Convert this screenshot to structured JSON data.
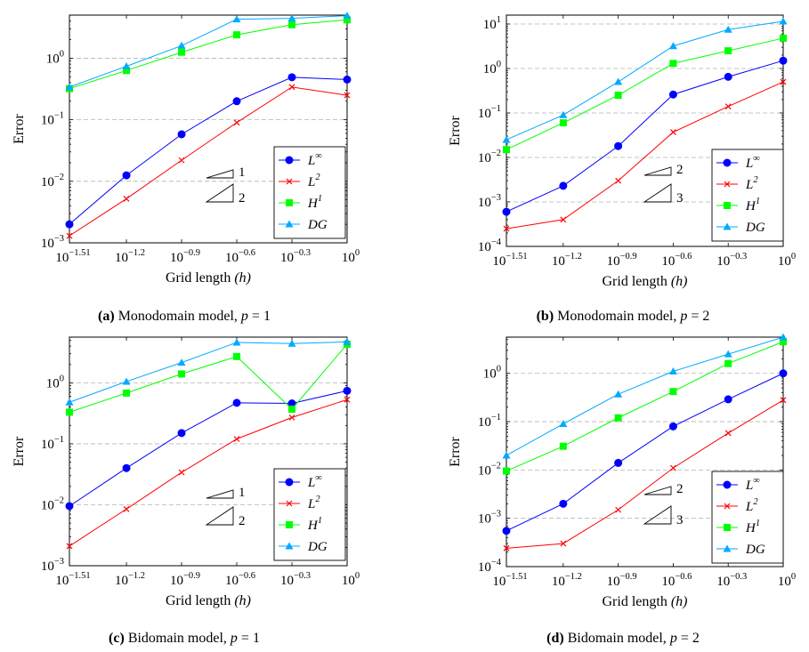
{
  "figure": {
    "ticks": {
      "x_exponents": [
        "−1.51",
        "−1.2",
        "−0.9",
        "−0.6",
        "−0.3",
        "0"
      ],
      "y_base": "10"
    },
    "legend": [
      {
        "key": "Linf",
        "base": "L",
        "sup": "∞",
        "color": "#0000ff",
        "marker": "circle"
      },
      {
        "key": "L2",
        "base": "L",
        "sup": "2",
        "color": "#ff0000",
        "marker": "cross"
      },
      {
        "key": "H1",
        "base": "H",
        "sup": "1",
        "color": "#00ff00",
        "marker": "square"
      },
      {
        "key": "DG",
        "base": "DG",
        "sup": "",
        "color": "#00aaff",
        "marker": "triangle"
      }
    ]
  },
  "chart_data": [
    {
      "type": "line",
      "id": "a",
      "caption_tag": "(a)",
      "caption_text": " Monodomain model, ",
      "caption_var": "p",
      "caption_eq": " = 1",
      "xlabel": "Grid length",
      "xlabel_var": "(h)",
      "ylabel": "Error",
      "xscale": "log10",
      "yscale": "log10",
      "xlim_log10": [
        -1.51,
        0
      ],
      "ylim_log10": [
        -3,
        0.7
      ],
      "y_tick_exponents": [
        "−3",
        "−2",
        "−1",
        "0"
      ],
      "y_tick_values_log10": [
        -3,
        -2,
        -1,
        0
      ],
      "grid": "horizontal dashed",
      "legend_position": "bottom-right",
      "x_log10": [
        -1.51,
        -1.2,
        -0.9,
        -0.6,
        -0.3,
        0
      ],
      "series": [
        {
          "name": "L∞",
          "values": [
            0.002,
            0.0125,
            0.058,
            0.2,
            0.49,
            0.45
          ]
        },
        {
          "name": "L2",
          "values": [
            0.0013,
            0.0052,
            0.022,
            0.09,
            0.34,
            0.25
          ]
        },
        {
          "name": "H1",
          "values": [
            0.32,
            0.63,
            1.25,
            2.4,
            3.5,
            4.2
          ]
        },
        {
          "name": "DG",
          "values": [
            0.34,
            0.74,
            1.6,
            4.3,
            4.45,
            4.9
          ]
        }
      ],
      "slope_labels": [
        "1",
        "2"
      ]
    },
    {
      "type": "line",
      "id": "b",
      "caption_tag": "(b)",
      "caption_text": " Monodomain model, ",
      "caption_var": "p",
      "caption_eq": " = 2",
      "xlabel": "Grid length",
      "xlabel_var": "(h)",
      "ylabel": "Error",
      "xscale": "log10",
      "yscale": "log10",
      "xlim_log10": [
        -1.51,
        0
      ],
      "ylim_log10": [
        -4,
        1.2
      ],
      "y_tick_exponents": [
        "−4",
        "−3",
        "−2",
        "−1",
        "0",
        "1"
      ],
      "y_tick_values_log10": [
        -4,
        -3,
        -2,
        -1,
        0,
        1
      ],
      "grid": "horizontal dashed",
      "legend_position": "bottom-right",
      "x_log10": [
        -1.51,
        -1.2,
        -0.9,
        -0.6,
        -0.3,
        0
      ],
      "series": [
        {
          "name": "L∞",
          "values": [
            0.0006,
            0.0023,
            0.018,
            0.26,
            0.65,
            1.5
          ]
        },
        {
          "name": "L2",
          "values": [
            0.00025,
            0.0004,
            0.003,
            0.037,
            0.14,
            0.5
          ]
        },
        {
          "name": "H1",
          "values": [
            0.015,
            0.06,
            0.25,
            1.3,
            2.5,
            4.8
          ]
        },
        {
          "name": "DG",
          "values": [
            0.025,
            0.09,
            0.5,
            3.2,
            7.5,
            11.5
          ]
        }
      ],
      "slope_labels": [
        "2",
        "3"
      ]
    },
    {
      "type": "line",
      "id": "c",
      "caption_tag": "(c)",
      "caption_text": " Bidomain model, ",
      "caption_var": "p",
      "caption_eq": " = 1",
      "xlabel": "Grid length",
      "xlabel_var": "(h)",
      "ylabel": "Error",
      "xscale": "log10",
      "yscale": "log10",
      "xlim_log10": [
        -1.51,
        0
      ],
      "ylim_log10": [
        -3,
        0.75
      ],
      "y_tick_exponents": [
        "−3",
        "−2",
        "−1",
        "0"
      ],
      "y_tick_values_log10": [
        -3,
        -2,
        -1,
        0
      ],
      "grid": "horizontal dashed",
      "legend_position": "bottom-right",
      "x_log10": [
        -1.51,
        -1.2,
        -0.9,
        -0.6,
        -0.3,
        0
      ],
      "series": [
        {
          "name": "L∞",
          "values": [
            0.0095,
            0.04,
            0.15,
            0.47,
            0.46,
            0.74
          ]
        },
        {
          "name": "L2",
          "values": [
            0.0021,
            0.0085,
            0.034,
            0.12,
            0.27,
            0.53
          ]
        },
        {
          "name": "H1",
          "values": [
            0.33,
            0.68,
            1.4,
            2.7,
            0.37,
            4.3
          ]
        },
        {
          "name": "DG",
          "values": [
            0.48,
            1.05,
            2.15,
            4.6,
            4.4,
            4.7
          ]
        }
      ],
      "slope_labels": [
        "1",
        "2"
      ]
    },
    {
      "type": "line",
      "id": "d",
      "caption_tag": "(d)",
      "caption_text": " Bidomain model, ",
      "caption_var": "p",
      "caption_eq": " = 2",
      "xlabel": "Grid length",
      "xlabel_var": "(h)",
      "ylabel": "Error",
      "xscale": "log10",
      "yscale": "log10",
      "xlim_log10": [
        -1.51,
        0
      ],
      "ylim_log10": [
        -4,
        0.75
      ],
      "y_tick_exponents": [
        "−4",
        "−3",
        "−2",
        "−1",
        "0"
      ],
      "y_tick_values_log10": [
        -4,
        -3,
        -2,
        -1,
        0
      ],
      "grid": "horizontal dashed",
      "legend_position": "bottom-right",
      "x_log10": [
        -1.51,
        -1.2,
        -0.9,
        -0.6,
        -0.3,
        0
      ],
      "series": [
        {
          "name": "L∞",
          "values": [
            0.00055,
            0.002,
            0.014,
            0.08,
            0.29,
            1.0
          ]
        },
        {
          "name": "L2",
          "values": [
            0.00024,
            0.0003,
            0.0015,
            0.011,
            0.058,
            0.28
          ]
        },
        {
          "name": "H1",
          "values": [
            0.0095,
            0.031,
            0.12,
            0.42,
            1.6,
            4.5
          ]
        },
        {
          "name": "DG",
          "values": [
            0.02,
            0.09,
            0.37,
            1.1,
            2.5,
            5.6
          ]
        }
      ],
      "slope_labels": [
        "2",
        "3"
      ]
    }
  ]
}
